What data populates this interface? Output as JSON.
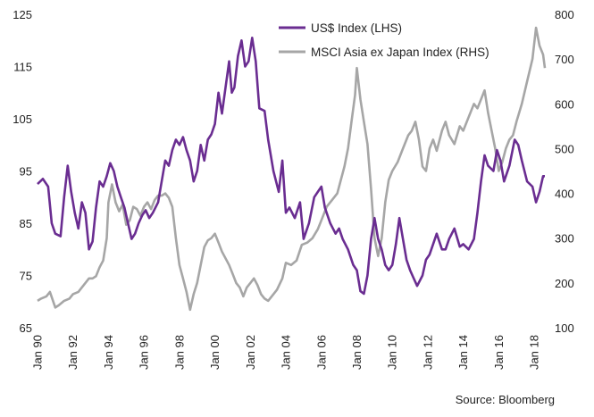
{
  "chart_data": {
    "type": "line",
    "source": "Source: Bloomberg",
    "x_ticks": [
      "Jan 90",
      "Jan 92",
      "Jan 94",
      "Jan 96",
      "Jan 98",
      "Jan 00",
      "Jan 02",
      "Jan 04",
      "Jan 06",
      "Jan 08",
      "Jan 10",
      "Jan 12",
      "Jan 14",
      "Jan 16",
      "Jan 18"
    ],
    "x_range": [
      1990.0,
      2018.6
    ],
    "y_left": {
      "ticks": [
        "65",
        "75",
        "85",
        "95",
        "105",
        "115",
        "125"
      ],
      "range": [
        65,
        125
      ]
    },
    "y_right": {
      "ticks": [
        "100",
        "200",
        "300",
        "400",
        "500",
        "600",
        "700",
        "800"
      ],
      "range": [
        100,
        800
      ]
    },
    "legend_placement": "top-right",
    "series": [
      {
        "name": "US$ Index (LHS)",
        "axis": "left",
        "color": "#6a2d91",
        "points": [
          [
            1990.0,
            92.5
          ],
          [
            1990.3,
            93.5
          ],
          [
            1990.6,
            92.0
          ],
          [
            1990.8,
            85.0
          ],
          [
            1991.0,
            83.0
          ],
          [
            1991.3,
            82.5
          ],
          [
            1991.5,
            90.0
          ],
          [
            1991.7,
            96.0
          ],
          [
            1991.9,
            91.0
          ],
          [
            1992.1,
            87.0
          ],
          [
            1992.3,
            84.0
          ],
          [
            1992.5,
            89.0
          ],
          [
            1992.7,
            87.0
          ],
          [
            1992.9,
            80.0
          ],
          [
            1993.1,
            81.5
          ],
          [
            1993.3,
            88.0
          ],
          [
            1993.5,
            93.0
          ],
          [
            1993.7,
            92.0
          ],
          [
            1993.9,
            94.0
          ],
          [
            1994.1,
            96.5
          ],
          [
            1994.3,
            95.0
          ],
          [
            1994.5,
            92.0
          ],
          [
            1994.7,
            90.0
          ],
          [
            1994.9,
            88.0
          ],
          [
            1995.1,
            85.0
          ],
          [
            1995.3,
            82.0
          ],
          [
            1995.5,
            83.0
          ],
          [
            1995.7,
            85.0
          ],
          [
            1995.9,
            86.5
          ],
          [
            1996.1,
            87.5
          ],
          [
            1996.3,
            86.0
          ],
          [
            1996.5,
            87.0
          ],
          [
            1996.8,
            89.0
          ],
          [
            1997.0,
            93.0
          ],
          [
            1997.2,
            97.0
          ],
          [
            1997.4,
            96.0
          ],
          [
            1997.6,
            99.0
          ],
          [
            1997.8,
            101.0
          ],
          [
            1998.0,
            100.0
          ],
          [
            1998.2,
            101.5
          ],
          [
            1998.4,
            99.0
          ],
          [
            1998.6,
            97.0
          ],
          [
            1998.8,
            93.0
          ],
          [
            1999.0,
            95.0
          ],
          [
            1999.2,
            100.0
          ],
          [
            1999.4,
            97.0
          ],
          [
            1999.6,
            101.0
          ],
          [
            1999.8,
            102.0
          ],
          [
            2000.0,
            104.0
          ],
          [
            2000.2,
            110.0
          ],
          [
            2000.4,
            106.0
          ],
          [
            2000.6,
            111.0
          ],
          [
            2000.8,
            116.0
          ],
          [
            2000.95,
            110.0
          ],
          [
            2001.1,
            111.0
          ],
          [
            2001.3,
            117.0
          ],
          [
            2001.5,
            120.0
          ],
          [
            2001.7,
            115.0
          ],
          [
            2001.9,
            116.0
          ],
          [
            2002.1,
            120.5
          ],
          [
            2002.3,
            116.0
          ],
          [
            2002.5,
            107.0
          ],
          [
            2002.8,
            106.5
          ],
          [
            2003.0,
            101.0
          ],
          [
            2003.3,
            95.0
          ],
          [
            2003.6,
            91.0
          ],
          [
            2003.8,
            97.0
          ],
          [
            2004.0,
            87.0
          ],
          [
            2004.2,
            88.0
          ],
          [
            2004.5,
            86.0
          ],
          [
            2004.8,
            89.0
          ],
          [
            2005.0,
            82.0
          ],
          [
            2005.3,
            85.0
          ],
          [
            2005.6,
            90.0
          ],
          [
            2005.8,
            91.0
          ],
          [
            2006.0,
            92.0
          ],
          [
            2006.2,
            88.0
          ],
          [
            2006.5,
            85.0
          ],
          [
            2006.8,
            83.0
          ],
          [
            2007.0,
            84.0
          ],
          [
            2007.2,
            82.0
          ],
          [
            2007.5,
            80.0
          ],
          [
            2007.8,
            77.0
          ],
          [
            2008.0,
            76.0
          ],
          [
            2008.2,
            72.0
          ],
          [
            2008.4,
            71.5
          ],
          [
            2008.6,
            75.0
          ],
          [
            2008.8,
            82.0
          ],
          [
            2009.0,
            86.0
          ],
          [
            2009.2,
            82.0
          ],
          [
            2009.4,
            80.0
          ],
          [
            2009.6,
            77.0
          ],
          [
            2009.8,
            76.0
          ],
          [
            2010.0,
            77.0
          ],
          [
            2010.2,
            81.0
          ],
          [
            2010.4,
            86.0
          ],
          [
            2010.6,
            82.0
          ],
          [
            2010.8,
            78.0
          ],
          [
            2011.0,
            76.0
          ],
          [
            2011.2,
            74.5
          ],
          [
            2011.4,
            73.0
          ],
          [
            2011.7,
            75.0
          ],
          [
            2011.9,
            78.0
          ],
          [
            2012.1,
            79.0
          ],
          [
            2012.3,
            81.0
          ],
          [
            2012.5,
            83.0
          ],
          [
            2012.8,
            80.0
          ],
          [
            2013.0,
            80.0
          ],
          [
            2013.2,
            82.0
          ],
          [
            2013.5,
            84.0
          ],
          [
            2013.8,
            80.5
          ],
          [
            2014.0,
            81.0
          ],
          [
            2014.3,
            80.0
          ],
          [
            2014.6,
            82.0
          ],
          [
            2014.8,
            87.0
          ],
          [
            2015.0,
            93.0
          ],
          [
            2015.2,
            98.0
          ],
          [
            2015.4,
            96.0
          ],
          [
            2015.7,
            95.0
          ],
          [
            2015.9,
            99.0
          ],
          [
            2016.1,
            97.0
          ],
          [
            2016.3,
            93.0
          ],
          [
            2016.6,
            96.0
          ],
          [
            2016.9,
            101.0
          ],
          [
            2017.1,
            100.0
          ],
          [
            2017.3,
            97.0
          ],
          [
            2017.6,
            93.0
          ],
          [
            2017.9,
            92.0
          ],
          [
            2018.1,
            89.0
          ],
          [
            2018.3,
            91.0
          ],
          [
            2018.5,
            94.0
          ],
          [
            2018.6,
            94.0
          ]
        ]
      },
      {
        "name": "MSCI Asia ex Japan Index (RHS)",
        "axis": "right",
        "color": "#a6a6a6",
        "points": [
          [
            1990.0,
            160.0
          ],
          [
            1990.2,
            165.0
          ],
          [
            1990.5,
            170.0
          ],
          [
            1990.7,
            180.0
          ],
          [
            1991.0,
            145.0
          ],
          [
            1991.2,
            150.0
          ],
          [
            1991.5,
            160.0
          ],
          [
            1991.8,
            165.0
          ],
          [
            1992.0,
            175.0
          ],
          [
            1992.3,
            180.0
          ],
          [
            1992.6,
            195.0
          ],
          [
            1992.9,
            210.0
          ],
          [
            1993.1,
            210.0
          ],
          [
            1993.3,
            215.0
          ],
          [
            1993.5,
            235.0
          ],
          [
            1993.7,
            250.0
          ],
          [
            1993.9,
            300.0
          ],
          [
            1994.0,
            380.0
          ],
          [
            1994.2,
            420.0
          ],
          [
            1994.4,
            380.0
          ],
          [
            1994.6,
            360.0
          ],
          [
            1994.8,
            375.0
          ],
          [
            1995.0,
            330.0
          ],
          [
            1995.2,
            340.0
          ],
          [
            1995.4,
            370.0
          ],
          [
            1995.6,
            365.0
          ],
          [
            1995.8,
            350.0
          ],
          [
            1996.0,
            370.0
          ],
          [
            1996.2,
            380.0
          ],
          [
            1996.4,
            365.0
          ],
          [
            1996.6,
            385.0
          ],
          [
            1996.8,
            395.0
          ],
          [
            1997.0,
            395.0
          ],
          [
            1997.2,
            400.0
          ],
          [
            1997.4,
            390.0
          ],
          [
            1997.6,
            370.0
          ],
          [
            1997.8,
            300.0
          ],
          [
            1998.0,
            240.0
          ],
          [
            1998.2,
            210.0
          ],
          [
            1998.4,
            180.0
          ],
          [
            1998.6,
            140.0
          ],
          [
            1998.8,
            175.0
          ],
          [
            1999.0,
            200.0
          ],
          [
            1999.2,
            240.0
          ],
          [
            1999.4,
            280.0
          ],
          [
            1999.6,
            295.0
          ],
          [
            1999.8,
            300.0
          ],
          [
            2000.0,
            310.0
          ],
          [
            2000.2,
            290.0
          ],
          [
            2000.4,
            270.0
          ],
          [
            2000.6,
            255.0
          ],
          [
            2000.8,
            240.0
          ],
          [
            2001.0,
            220.0
          ],
          [
            2001.2,
            200.0
          ],
          [
            2001.4,
            190.0
          ],
          [
            2001.6,
            170.0
          ],
          [
            2001.8,
            190.0
          ],
          [
            2002.0,
            200.0
          ],
          [
            2002.2,
            210.0
          ],
          [
            2002.4,
            195.0
          ],
          [
            2002.6,
            175.0
          ],
          [
            2002.8,
            165.0
          ],
          [
            2003.0,
            160.0
          ],
          [
            2003.2,
            170.0
          ],
          [
            2003.5,
            185.0
          ],
          [
            2003.8,
            210.0
          ],
          [
            2004.0,
            245.0
          ],
          [
            2004.3,
            240.0
          ],
          [
            2004.6,
            250.0
          ],
          [
            2004.9,
            285.0
          ],
          [
            2005.2,
            290.0
          ],
          [
            2005.5,
            300.0
          ],
          [
            2005.8,
            320.0
          ],
          [
            2006.0,
            340.0
          ],
          [
            2006.3,
            370.0
          ],
          [
            2006.6,
            385.0
          ],
          [
            2006.9,
            400.0
          ],
          [
            2007.1,
            430.0
          ],
          [
            2007.3,
            460.0
          ],
          [
            2007.5,
            500.0
          ],
          [
            2007.7,
            560.0
          ],
          [
            2007.9,
            620.0
          ],
          [
            2008.0,
            680.0
          ],
          [
            2008.2,
            610.0
          ],
          [
            2008.4,
            560.0
          ],
          [
            2008.6,
            510.0
          ],
          [
            2008.8,
            410.0
          ],
          [
            2009.0,
            300.0
          ],
          [
            2009.2,
            260.0
          ],
          [
            2009.4,
            300.0
          ],
          [
            2009.6,
            380.0
          ],
          [
            2009.8,
            430.0
          ],
          [
            2010.0,
            450.0
          ],
          [
            2010.3,
            470.0
          ],
          [
            2010.6,
            500.0
          ],
          [
            2010.9,
            530.0
          ],
          [
            2011.1,
            540.0
          ],
          [
            2011.3,
            560.0
          ],
          [
            2011.5,
            520.0
          ],
          [
            2011.7,
            460.0
          ],
          [
            2011.9,
            450.0
          ],
          [
            2012.1,
            500.0
          ],
          [
            2012.3,
            520.0
          ],
          [
            2012.5,
            495.0
          ],
          [
            2012.8,
            540.0
          ],
          [
            2013.0,
            560.0
          ],
          [
            2013.2,
            530.0
          ],
          [
            2013.5,
            510.0
          ],
          [
            2013.8,
            550.0
          ],
          [
            2014.0,
            540.0
          ],
          [
            2014.3,
            570.0
          ],
          [
            2014.6,
            600.0
          ],
          [
            2014.8,
            590.0
          ],
          [
            2015.0,
            610.0
          ],
          [
            2015.2,
            630.0
          ],
          [
            2015.4,
            580.0
          ],
          [
            2015.6,
            540.0
          ],
          [
            2015.8,
            500.0
          ],
          [
            2016.0,
            450.0
          ],
          [
            2016.2,
            470.0
          ],
          [
            2016.4,
            500.0
          ],
          [
            2016.6,
            520.0
          ],
          [
            2016.8,
            530.0
          ],
          [
            2017.0,
            560.0
          ],
          [
            2017.3,
            600.0
          ],
          [
            2017.6,
            650.0
          ],
          [
            2017.9,
            700.0
          ],
          [
            2018.1,
            770.0
          ],
          [
            2018.3,
            730.0
          ],
          [
            2018.5,
            710.0
          ],
          [
            2018.6,
            680.0
          ]
        ]
      }
    ]
  }
}
